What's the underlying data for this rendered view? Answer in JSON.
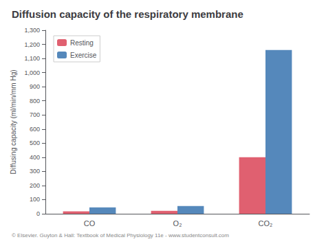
{
  "chart_data": {
    "type": "bar",
    "title": "Diffusion capacity of the respiratory membrane",
    "footnote": "© Elsevier. Guyton & Hall: Textbook of Medical Physiology 11e - www.studentconsult.com",
    "ylabel": "Diffusing capacity (ml/min/mm Hg)",
    "categories": [
      "CO",
      "O₂",
      "CO₂"
    ],
    "series": [
      {
        "name": "Resting",
        "color": "#E06070",
        "values": [
          17,
          21,
          400
        ]
      },
      {
        "name": "Exercise",
        "color": "#5588BB",
        "values": [
          45,
          55,
          1160
        ]
      }
    ],
    "ylim": [
      0,
      1300
    ],
    "yticks": [
      0,
      100,
      200,
      300,
      400,
      500,
      600,
      700,
      800,
      900,
      1000,
      1100,
      1200,
      1300
    ],
    "grid": false,
    "legend": "upper left"
  }
}
